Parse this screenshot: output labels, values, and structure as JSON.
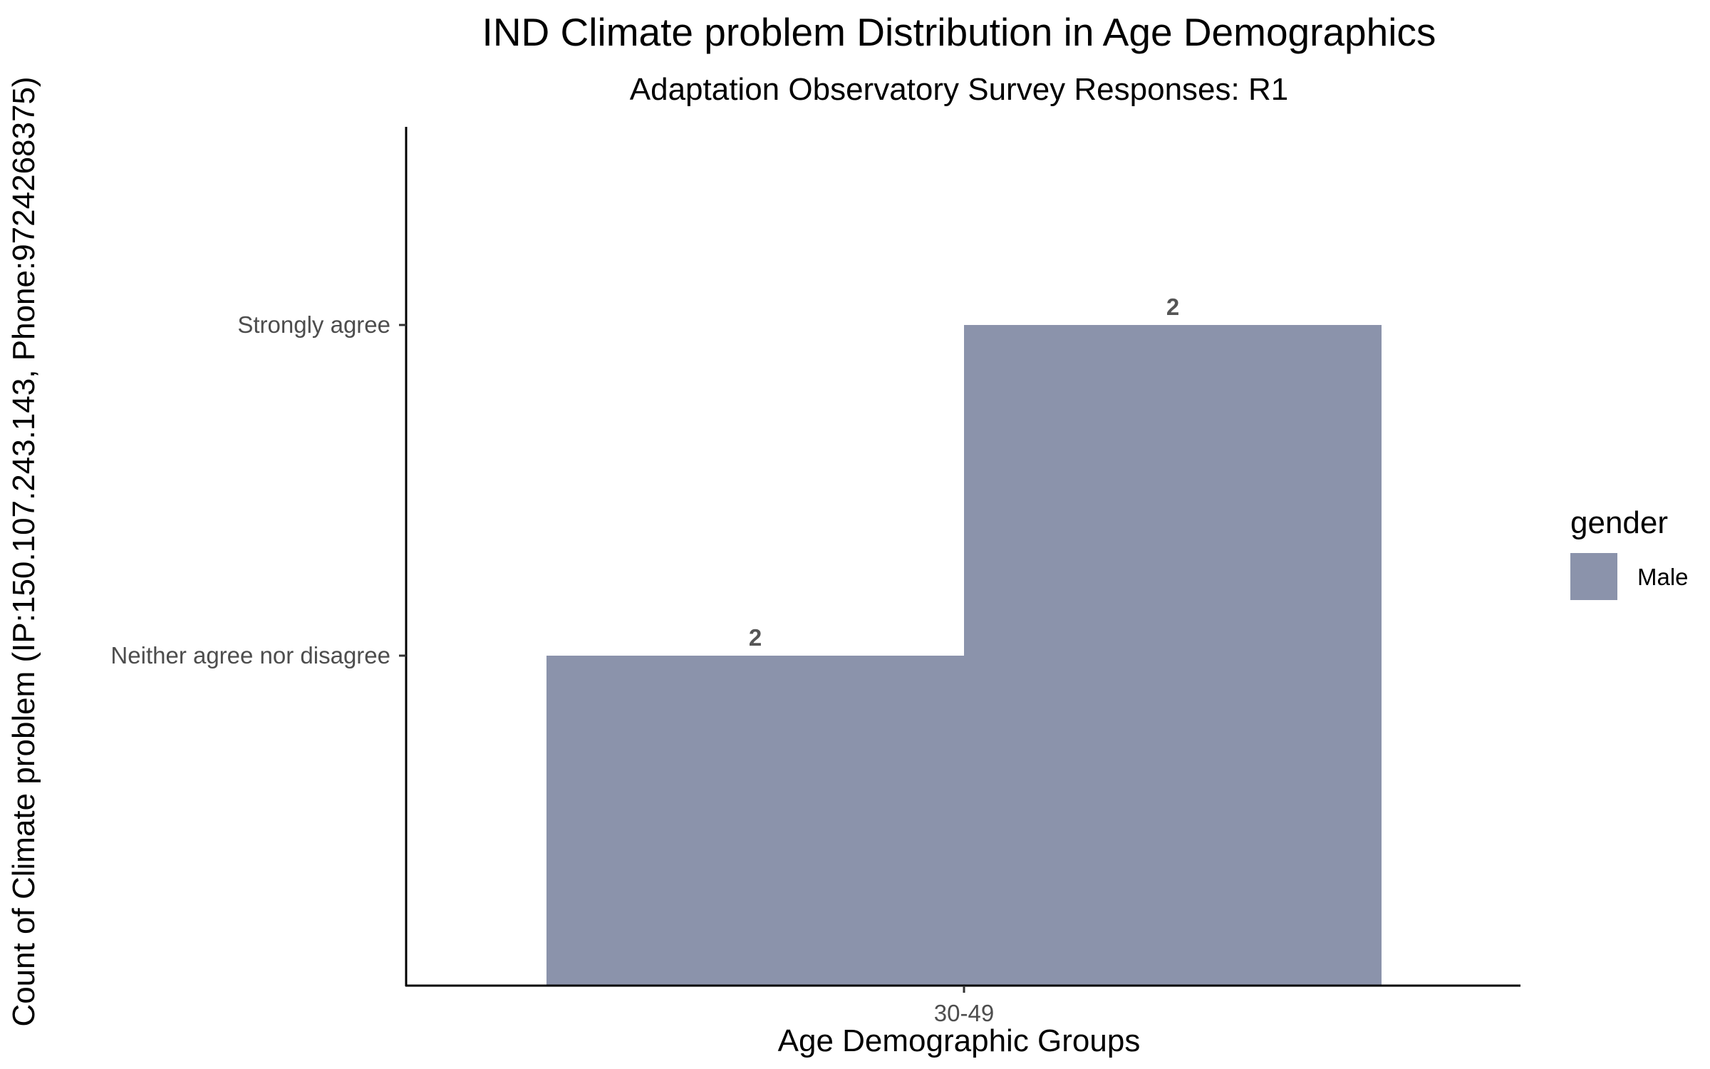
{
  "chart_data": {
    "type": "bar",
    "title": "IND Climate problem Distribution in Age Demographics",
    "subtitle": "Adaptation Observatory Survey Responses: R1",
    "xlabel": "Age Demographic Groups",
    "ylabel": "Count of Climate problem (IP:150.107.243.143, Phone:9724268375)",
    "categories": [
      "30-49"
    ],
    "y_categories": [
      "Neither agree nor disagree",
      "Strongly agree"
    ],
    "series": [
      {
        "name": "Male",
        "color": "#8b93ab",
        "bars": [
          {
            "x": "30-49",
            "y": "Neither agree nor disagree",
            "label": "2"
          },
          {
            "x": "30-49",
            "y": "Strongly agree",
            "label": "2"
          }
        ]
      }
    ],
    "legend": {
      "title": "gender",
      "position": "right",
      "entries": [
        {
          "label": "Male",
          "color": "#8b93ab"
        }
      ]
    },
    "grid": false
  }
}
